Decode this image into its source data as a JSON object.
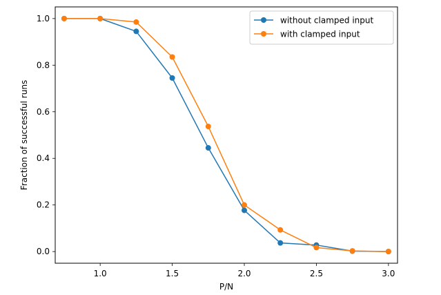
{
  "chart_data": {
    "type": "line",
    "title": "",
    "xlabel": "P/N",
    "ylabel": "Fraction of successful runs",
    "xlim": [
      0.688,
      3.063
    ],
    "ylim": [
      -0.05,
      1.05
    ],
    "xticks": [
      1.0,
      1.5,
      2.0,
      2.5,
      3.0
    ],
    "xtick_labels": [
      "1.0",
      "1.5",
      "2.0",
      "2.5",
      "3.0"
    ],
    "yticks": [
      0.0,
      0.2,
      0.4,
      0.6,
      0.8,
      1.0
    ],
    "ytick_labels": [
      "0.0",
      "0.2",
      "0.4",
      "0.6",
      "0.8",
      "1.0"
    ],
    "grid": false,
    "legend_position": "top-right",
    "x": [
      0.75,
      1.0,
      1.25,
      1.5,
      1.75,
      2.0,
      2.25,
      2.5,
      2.75,
      3.0
    ],
    "series": [
      {
        "name": "without clamped input",
        "color": "#1f77b4",
        "marker": "circle",
        "values": [
          1.0,
          1.0,
          0.945,
          0.745,
          0.445,
          0.177,
          0.037,
          0.028,
          0.002,
          0.0
        ]
      },
      {
        "name": "with clamped input",
        "color": "#ff7f0e",
        "marker": "circle",
        "values": [
          1.0,
          1.0,
          0.985,
          0.835,
          0.537,
          0.2,
          0.093,
          0.017,
          0.003,
          0.0
        ]
      }
    ]
  }
}
